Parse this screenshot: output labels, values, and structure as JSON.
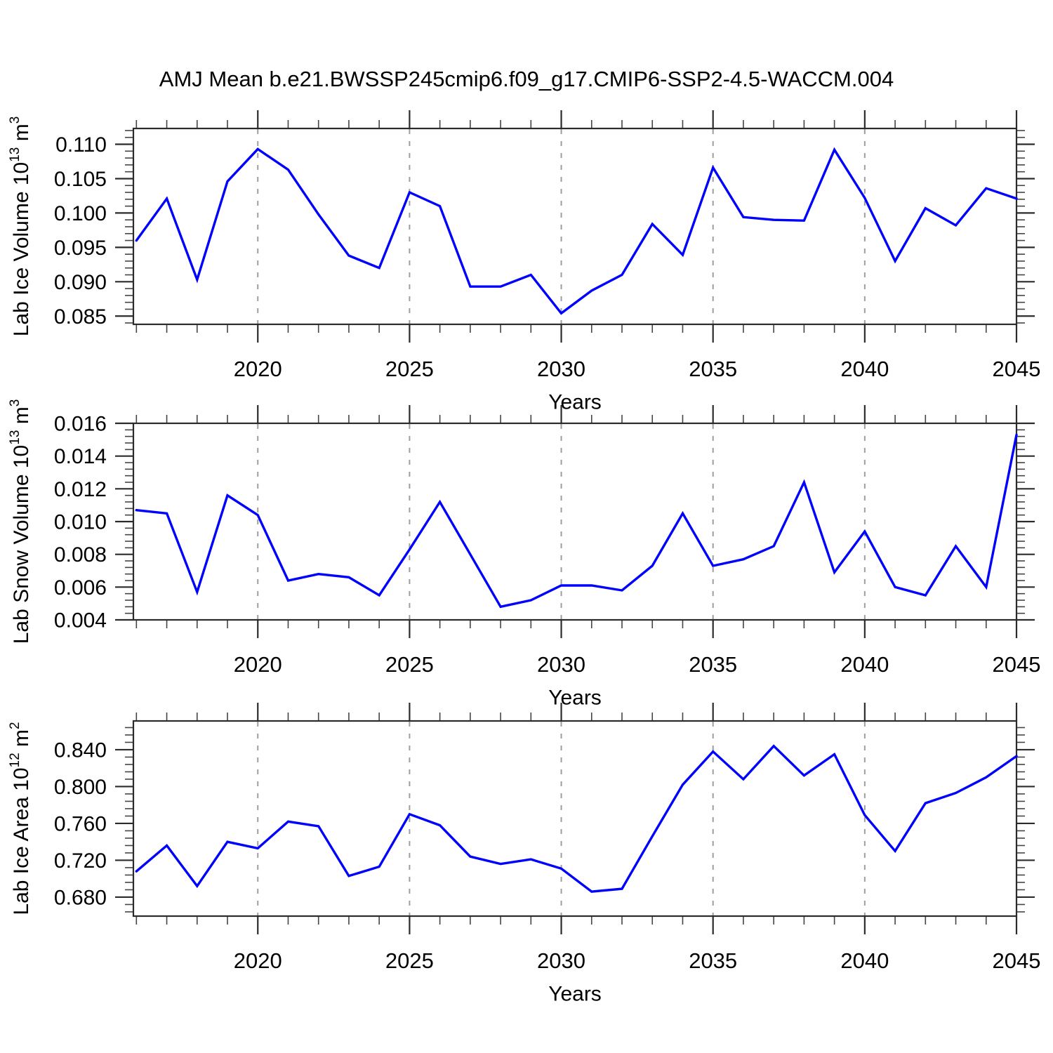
{
  "title": "AMJ Mean b.e21.BWSSP245cmip6.f09_g17.CMIP6-SSP2-4.5-WACCM.004",
  "colors": {
    "line": "#0000ff",
    "axis": "#2b2b2b",
    "minor_tick": "#444444",
    "grid": "#9e9e9e",
    "text": "#000000"
  },
  "x_axis": {
    "label": "Years",
    "range": [
      2015.9,
      2045
    ],
    "major_ticks": [
      2020,
      2025,
      2030,
      2035,
      2040,
      2045
    ],
    "minor_step": 1,
    "gridline_years": [
      2020,
      2025,
      2030,
      2035,
      2040
    ],
    "years": [
      2016,
      2017,
      2018,
      2019,
      2020,
      2021,
      2022,
      2023,
      2024,
      2025,
      2026,
      2027,
      2028,
      2029,
      2030,
      2031,
      2032,
      2033,
      2034,
      2035,
      2036,
      2037,
      2038,
      2039,
      2040,
      2041,
      2042,
      2043,
      2044,
      2045
    ]
  },
  "chart_data": [
    {
      "type": "line",
      "id": "lab-ice-volume",
      "ylabel": "Lab Ice Volume 10^13 m^3",
      "ylabel_parts": [
        [
          "Lab Ice Volume 10",
          0
        ],
        [
          "13",
          1
        ],
        [
          " m",
          0
        ],
        [
          "3",
          1
        ]
      ],
      "ylim": [
        0.0838,
        0.1123
      ],
      "yticks": [
        0.085,
        0.09,
        0.095,
        0.1,
        0.105,
        0.11
      ],
      "y_minor_step": 0.001,
      "tick_decimals": 3,
      "values": [
        0.096,
        0.1021,
        0.0903,
        0.1046,
        0.1093,
        0.1063,
        0.0998,
        0.0938,
        0.092,
        0.103,
        0.101,
        0.0893,
        0.0893,
        0.091,
        0.0854,
        0.0887,
        0.091,
        0.0984,
        0.0939,
        0.1066,
        0.0994,
        0.099,
        0.0989,
        0.1092,
        0.1022,
        0.093,
        0.1007,
        0.0982,
        0.1036,
        0.1021
      ]
    },
    {
      "type": "line",
      "id": "lab-snow-volume",
      "ylabel": "Lab Snow Volume 10^13 m^3",
      "ylabel_parts": [
        [
          "Lab Snow Volume 10",
          0
        ],
        [
          "13",
          1
        ],
        [
          " m",
          0
        ],
        [
          "3",
          1
        ]
      ],
      "ylim": [
        0.004,
        0.016
      ],
      "yticks": [
        0.004,
        0.006,
        0.008,
        0.01,
        0.012,
        0.014,
        0.016
      ],
      "y_minor_step": 0.0004,
      "tick_decimals": 3,
      "values": [
        0.0107,
        0.0105,
        0.0057,
        0.0116,
        0.0104,
        0.0064,
        0.0068,
        0.0066,
        0.0055,
        0.0083,
        0.0112,
        0.008,
        0.0048,
        0.0052,
        0.0061,
        0.0061,
        0.0058,
        0.0073,
        0.0105,
        0.0073,
        0.0077,
        0.0085,
        0.0124,
        0.0069,
        0.0094,
        0.006,
        0.0055,
        0.0085,
        0.006,
        0.0153
      ]
    },
    {
      "type": "line",
      "id": "lab-ice-area",
      "ylabel": "Lab Ice Area 10^12 m^2",
      "ylabel_parts": [
        [
          "Lab Ice Area 10",
          0
        ],
        [
          "12",
          1
        ],
        [
          " m",
          0
        ],
        [
          "2",
          1
        ]
      ],
      "ylim": [
        0.6594,
        0.8712
      ],
      "yticks": [
        0.68,
        0.72,
        0.76,
        0.8,
        0.84
      ],
      "y_minor_step": 0.008,
      "tick_decimals": 3,
      "values": [
        0.708,
        0.736,
        0.692,
        0.74,
        0.733,
        0.762,
        0.757,
        0.703,
        0.713,
        0.77,
        0.758,
        0.724,
        0.716,
        0.721,
        0.711,
        0.686,
        0.689,
        0.746,
        0.802,
        0.838,
        0.808,
        0.844,
        0.812,
        0.835,
        0.769,
        0.73,
        0.782,
        0.793,
        0.81,
        0.833
      ]
    }
  ]
}
